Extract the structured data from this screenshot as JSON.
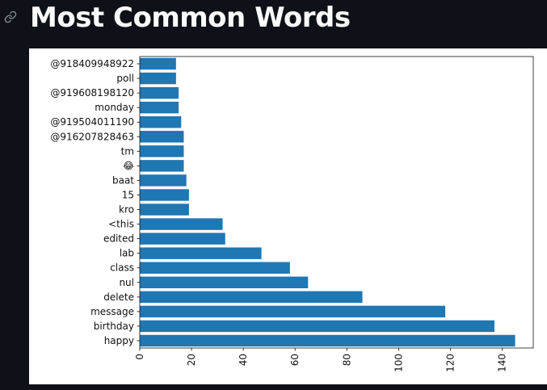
{
  "header": {
    "title": "Most Common Words"
  },
  "icons": {
    "anchor": "link-icon"
  },
  "colors": {
    "background": "#0e1117",
    "bar": "#1f77b4",
    "title": "#fafafa"
  },
  "chart_data": {
    "type": "bar",
    "orientation": "horizontal",
    "categories": [
      "happy",
      "birthday",
      "message",
      "delete",
      "nul",
      "class",
      "lab",
      "edited",
      "<this",
      "kro",
      "15",
      "baat",
      "😂",
      "tm",
      "@916207828463",
      "@919504011190",
      "monday",
      "@919608198120",
      "poll",
      "@918409948922"
    ],
    "values": [
      145,
      137,
      118,
      86,
      65,
      58,
      47,
      33,
      32,
      19,
      19,
      18,
      17,
      17,
      17,
      16,
      15,
      15,
      14,
      14
    ],
    "x_ticks": [
      0,
      20,
      40,
      60,
      80,
      100,
      120,
      140
    ],
    "xlim": [
      0,
      152
    ],
    "title": "",
    "xlabel": "",
    "ylabel": "",
    "grid": false,
    "legend": "none"
  }
}
